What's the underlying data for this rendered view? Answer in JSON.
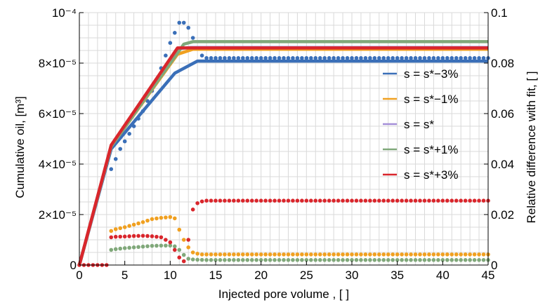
{
  "chart_data": {
    "type": "line",
    "x_label": "Injected pore volume ,  [ ]",
    "y_label": "Cumulative oil,  [m³]",
    "y2_label": "Relative difference with fit,  [ ]",
    "x_ticks": [
      "0",
      "5",
      "10",
      "15",
      "20",
      "25",
      "30",
      "35",
      "40",
      "45"
    ],
    "y_ticks": [
      "0",
      "2×10⁻⁵",
      "4×10⁻⁵",
      "6×10⁻⁵",
      "8×10⁻⁵",
      "10⁻⁴"
    ],
    "y2_ticks": [
      "0",
      "0.02",
      "0.04",
      "0.06",
      "0.08",
      "0.1"
    ],
    "xlim": [
      0,
      45
    ],
    "ylim": [
      0,
      0.0001
    ],
    "y2lim": [
      0,
      0.1
    ],
    "grid": true,
    "legend_position": "right",
    "series": [
      {
        "name": "s = s*−3%",
        "color": "#3a6fb8",
        "line": {
          "x": [
            0,
            3.5,
            10.5,
            13,
            45
          ],
          "y": [
            0,
            4.6e-05,
            7.6e-05,
            8.08e-05,
            8.08e-05
          ]
        },
        "diff": {
          "x": [
            3.5,
            4,
            4.5,
            5,
            5.5,
            6,
            6.5,
            7,
            7.5,
            8,
            8.5,
            9,
            9.5,
            10,
            10.5,
            11,
            11.5,
            12,
            12.5,
            13,
            13.5,
            14,
            45
          ],
          "y": [
            0.038,
            0.042,
            0.046,
            0.049,
            0.052,
            0.055,
            0.058,
            0.061,
            0.065,
            0.069,
            0.073,
            0.078,
            0.083,
            0.088,
            0.092,
            0.096,
            0.096,
            0.094,
            0.09,
            0.086,
            0.083,
            0.082,
            0.082
          ]
        }
      },
      {
        "name": "s = s*−1%",
        "color": "#f0a020",
        "line": {
          "x": [
            0,
            3.5,
            10.8,
            12.5,
            45
          ],
          "y": [
            0,
            4.7e-05,
            8.35e-05,
            8.55e-05,
            8.55e-05
          ]
        },
        "diff": {
          "x": [
            3.5,
            4,
            5,
            6,
            7,
            8,
            9,
            10,
            10.5,
            11,
            11.5,
            12,
            12.5,
            13,
            13.5,
            14,
            45
          ],
          "y": [
            0.0135,
            0.0142,
            0.015,
            0.016,
            0.017,
            0.0182,
            0.0187,
            0.019,
            0.0185,
            0.014,
            0.01,
            0.007,
            0.005,
            0.0045,
            0.0042,
            0.0042,
            0.0042
          ]
        }
      },
      {
        "name": "s = s*",
        "color": "#a58fd8",
        "line": {
          "x": [
            0,
            3.5,
            11,
            12.3,
            45
          ],
          "y": [
            0,
            4.7e-05,
            8.58e-05,
            8.62e-05,
            8.62e-05
          ]
        },
        "diff": {
          "x": [],
          "y": []
        }
      },
      {
        "name": "s = s*+1%",
        "color": "#80a87a",
        "line": {
          "x": [
            0,
            3.5,
            11.5,
            12.5,
            45
          ],
          "y": [
            0,
            4.7e-05,
            8.75e-05,
            8.85e-05,
            8.85e-05
          ]
        },
        "diff": {
          "x": [
            3.5,
            4,
            5,
            6,
            7,
            8,
            9,
            10,
            10.5,
            11,
            11.5,
            12,
            12.5,
            13,
            14,
            45
          ],
          "y": [
            0.006,
            0.0063,
            0.0067,
            0.007,
            0.0073,
            0.0076,
            0.0077,
            0.0077,
            0.0074,
            0.006,
            0.004,
            0.0025,
            0.0022,
            0.0021,
            0.002,
            0.002
          ]
        }
      },
      {
        "name": "s = s*+3%",
        "color": "#d9262c",
        "line": {
          "x": [
            0,
            3.5,
            10.8,
            11,
            45
          ],
          "y": [
            0,
            4.75e-05,
            8.6e-05,
            8.6e-05,
            8.6e-05
          ]
        },
        "diff": {
          "x": [
            0,
            0.5,
            1,
            1.5,
            2,
            2.5,
            3,
            3.5,
            4,
            5,
            6,
            7,
            8,
            9,
            10,
            10.5,
            11,
            11.5,
            12,
            12.5,
            13,
            13.5,
            14,
            45
          ],
          "y": [
            0,
            0,
            0,
            0,
            0,
            0,
            0,
            0.011,
            0.0112,
            0.0113,
            0.0115,
            0.0116,
            0.0114,
            0.011,
            0.009,
            0.006,
            0.003,
            0.0015,
            0.01,
            0.022,
            0.0245,
            0.0252,
            0.0255,
            0.0255
          ]
        }
      }
    ]
  }
}
